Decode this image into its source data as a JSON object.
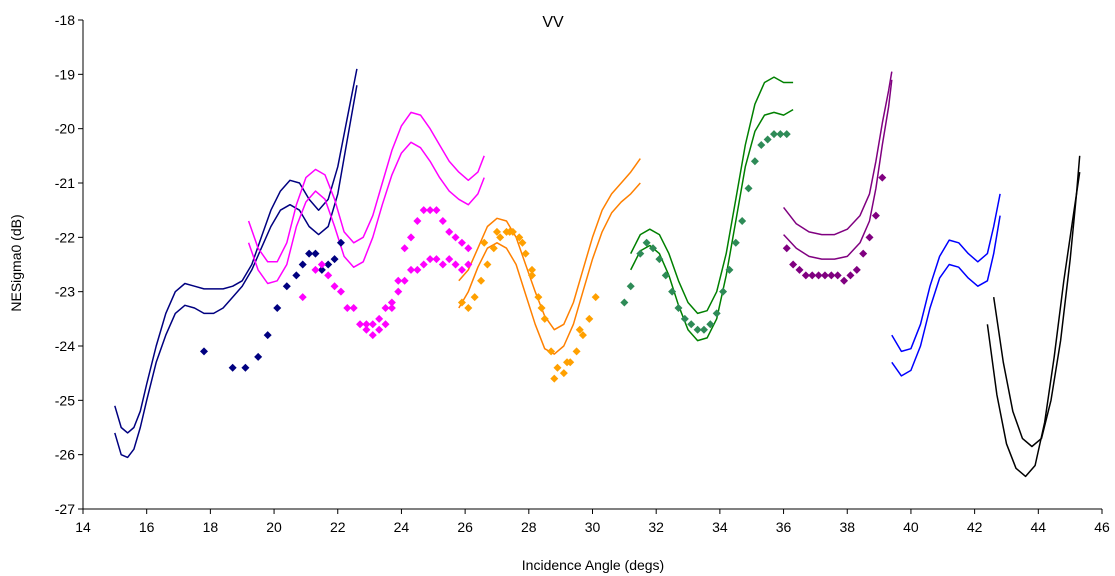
{
  "chart_data": {
    "type": "scatter",
    "title": "VV",
    "xlabel": "Incidence Angle (degs)",
    "ylabel": "NESigma0 (dB)",
    "xlim": [
      14,
      46
    ],
    "ylim": [
      -27,
      -18
    ],
    "xticks": [
      14,
      16,
      18,
      20,
      22,
      24,
      26,
      28,
      30,
      32,
      34,
      36,
      38,
      40,
      42,
      44,
      46
    ],
    "yticks": [
      -18,
      -19,
      -20,
      -21,
      -22,
      -23,
      -24,
      -25,
      -26,
      -27
    ],
    "grid": false,
    "legend": "none",
    "series": [
      {
        "color": "#000080",
        "kind": "line",
        "x": [
          15.0,
          15.2,
          15.4,
          15.6,
          15.8,
          16.0,
          16.3,
          16.6,
          16.9,
          17.2,
          17.5,
          17.8,
          18.1,
          18.4,
          18.7,
          19.0,
          19.3,
          19.6,
          19.9,
          20.2,
          20.5,
          20.8,
          21.1,
          21.4,
          21.7,
          22.0,
          22.3,
          22.6
        ],
        "y": [
          -25.1,
          -25.5,
          -25.6,
          -25.5,
          -25.2,
          -24.7,
          -24.0,
          -23.4,
          -23.0,
          -22.85,
          -22.9,
          -22.95,
          -22.95,
          -22.95,
          -22.9,
          -22.8,
          -22.5,
          -22.0,
          -21.5,
          -21.15,
          -20.95,
          -21.0,
          -21.3,
          -21.5,
          -21.3,
          -20.7,
          -19.8,
          -18.9
        ]
      },
      {
        "color": "#000080",
        "kind": "line",
        "x": [
          15.0,
          15.2,
          15.4,
          15.6,
          15.8,
          16.0,
          16.3,
          16.6,
          16.9,
          17.2,
          17.5,
          17.8,
          18.1,
          18.4,
          18.7,
          19.0,
          19.3,
          19.6,
          19.9,
          20.2,
          20.5,
          20.8,
          21.1,
          21.4,
          21.7,
          22.0,
          22.3,
          22.6
        ],
        "y": [
          -25.6,
          -26.0,
          -26.05,
          -25.9,
          -25.5,
          -25.0,
          -24.3,
          -23.8,
          -23.4,
          -23.25,
          -23.3,
          -23.4,
          -23.4,
          -23.3,
          -23.1,
          -22.9,
          -22.6,
          -22.2,
          -21.8,
          -21.5,
          -21.4,
          -21.5,
          -21.8,
          -21.95,
          -21.8,
          -21.2,
          -20.2,
          -19.2
        ]
      },
      {
        "color": "#FF00FF",
        "kind": "line",
        "x": [
          19.2,
          19.5,
          19.8,
          20.1,
          20.4,
          20.7,
          21.0,
          21.3,
          21.6,
          21.9,
          22.2,
          22.5,
          22.8,
          23.1,
          23.4,
          23.7,
          24.0,
          24.3,
          24.6,
          24.9,
          25.2,
          25.5,
          25.8,
          26.1,
          26.4,
          26.6
        ],
        "y": [
          -21.7,
          -22.2,
          -22.45,
          -22.45,
          -22.1,
          -21.4,
          -20.9,
          -20.75,
          -20.85,
          -21.3,
          -21.9,
          -22.1,
          -22.0,
          -21.6,
          -21.0,
          -20.4,
          -19.95,
          -19.7,
          -19.75,
          -20.0,
          -20.3,
          -20.6,
          -20.8,
          -20.95,
          -20.8,
          -20.5
        ]
      },
      {
        "color": "#FF00FF",
        "kind": "line",
        "x": [
          19.2,
          19.5,
          19.8,
          20.1,
          20.4,
          20.7,
          21.0,
          21.3,
          21.6,
          21.9,
          22.2,
          22.5,
          22.8,
          23.1,
          23.4,
          23.7,
          24.0,
          24.3,
          24.6,
          24.9,
          25.2,
          25.5,
          25.8,
          26.1,
          26.4,
          26.6
        ],
        "y": [
          -22.1,
          -22.6,
          -22.85,
          -22.8,
          -22.5,
          -21.8,
          -21.35,
          -21.15,
          -21.3,
          -21.8,
          -22.35,
          -22.55,
          -22.45,
          -22.0,
          -21.4,
          -20.85,
          -20.45,
          -20.25,
          -20.35,
          -20.6,
          -20.9,
          -21.15,
          -21.3,
          -21.4,
          -21.2,
          -20.9
        ]
      },
      {
        "color": "#FF8000",
        "kind": "line",
        "x": [
          25.8,
          26.1,
          26.4,
          26.7,
          27.0,
          27.3,
          27.6,
          27.9,
          28.2,
          28.5,
          28.8,
          29.1,
          29.4,
          29.7,
          30.0,
          30.3,
          30.6,
          30.9,
          31.2,
          31.5
        ],
        "y": [
          -22.8,
          -22.6,
          -22.2,
          -21.8,
          -21.65,
          -21.7,
          -22.0,
          -22.5,
          -23.0,
          -23.45,
          -23.7,
          -23.6,
          -23.2,
          -22.6,
          -22.0,
          -21.5,
          -21.2,
          -21.0,
          -20.8,
          -20.55
        ]
      },
      {
        "color": "#FF8000",
        "kind": "line",
        "x": [
          25.8,
          26.1,
          26.4,
          26.7,
          27.0,
          27.3,
          27.6,
          27.9,
          28.2,
          28.5,
          28.8,
          29.1,
          29.4,
          29.7,
          30.0,
          30.3,
          30.6,
          30.9,
          31.2,
          31.5
        ],
        "y": [
          -23.3,
          -23.0,
          -22.55,
          -22.2,
          -22.1,
          -22.2,
          -22.5,
          -23.05,
          -23.6,
          -24.05,
          -24.15,
          -24.0,
          -23.6,
          -23.0,
          -22.4,
          -21.9,
          -21.55,
          -21.35,
          -21.2,
          -21.0
        ]
      },
      {
        "color": "#008000",
        "kind": "line",
        "x": [
          31.2,
          31.5,
          31.8,
          32.1,
          32.4,
          32.7,
          33.0,
          33.3,
          33.6,
          33.9,
          34.2,
          34.5,
          34.8,
          35.1,
          35.4,
          35.7,
          36.0,
          36.3
        ],
        "y": [
          -22.3,
          -21.95,
          -21.85,
          -21.95,
          -22.3,
          -22.8,
          -23.2,
          -23.4,
          -23.35,
          -23.0,
          -22.3,
          -21.3,
          -20.3,
          -19.55,
          -19.15,
          -19.05,
          -19.15,
          -19.15
        ]
      },
      {
        "color": "#008000",
        "kind": "line",
        "x": [
          31.2,
          31.5,
          31.8,
          32.1,
          32.4,
          32.7,
          33.0,
          33.3,
          33.6,
          33.9,
          34.2,
          34.5,
          34.8,
          35.1,
          35.4,
          35.7,
          36.0,
          36.3
        ],
        "y": [
          -22.6,
          -22.25,
          -22.15,
          -22.3,
          -22.7,
          -23.25,
          -23.7,
          -23.9,
          -23.85,
          -23.5,
          -22.7,
          -21.7,
          -20.7,
          -20.05,
          -19.75,
          -19.7,
          -19.75,
          -19.65
        ]
      },
      {
        "color": "#800080",
        "kind": "line",
        "x": [
          36.0,
          36.4,
          36.8,
          37.2,
          37.6,
          38.0,
          38.4,
          38.7,
          38.9,
          39.1,
          39.3,
          39.4
        ],
        "y": [
          -21.45,
          -21.75,
          -21.9,
          -21.95,
          -21.95,
          -21.85,
          -21.6,
          -21.2,
          -20.6,
          -19.9,
          -19.3,
          -18.95
        ]
      },
      {
        "color": "#800080",
        "kind": "line",
        "x": [
          36.0,
          36.4,
          36.8,
          37.2,
          37.6,
          38.0,
          38.4,
          38.7,
          38.9,
          39.1,
          39.3,
          39.4
        ],
        "y": [
          -21.95,
          -22.2,
          -22.35,
          -22.4,
          -22.4,
          -22.35,
          -22.1,
          -21.7,
          -21.1,
          -20.3,
          -19.6,
          -19.1
        ]
      },
      {
        "color": "#0000FF",
        "kind": "line",
        "x": [
          39.4,
          39.7,
          40.0,
          40.3,
          40.6,
          40.9,
          41.2,
          41.5,
          41.8,
          42.1,
          42.4,
          42.6,
          42.8
        ],
        "y": [
          -23.8,
          -24.1,
          -24.05,
          -23.6,
          -22.9,
          -22.35,
          -22.05,
          -22.1,
          -22.3,
          -22.45,
          -22.3,
          -21.8,
          -21.2
        ]
      },
      {
        "color": "#0000FF",
        "kind": "line",
        "x": [
          39.4,
          39.7,
          40.0,
          40.3,
          40.6,
          40.9,
          41.2,
          41.5,
          41.8,
          42.1,
          42.4,
          42.6,
          42.8
        ],
        "y": [
          -24.3,
          -24.55,
          -24.45,
          -24.0,
          -23.3,
          -22.75,
          -22.5,
          -22.55,
          -22.75,
          -22.9,
          -22.8,
          -22.3,
          -21.6
        ]
      },
      {
        "color": "#000000",
        "kind": "line",
        "x": [
          42.6,
          42.9,
          43.2,
          43.5,
          43.8,
          44.1,
          44.4,
          44.7,
          45.0,
          45.2,
          45.3
        ],
        "y": [
          -23.1,
          -24.3,
          -25.2,
          -25.7,
          -25.85,
          -25.7,
          -25.0,
          -23.9,
          -22.4,
          -21.2,
          -20.5
        ]
      },
      {
        "color": "#000000",
        "kind": "line",
        "x": [
          42.4,
          42.7,
          43.0,
          43.3,
          43.6,
          43.9,
          44.2,
          44.5,
          44.8,
          45.1,
          45.3
        ],
        "y": [
          -23.6,
          -24.9,
          -25.8,
          -26.25,
          -26.4,
          -26.2,
          -25.4,
          -24.2,
          -22.8,
          -21.6,
          -20.8
        ]
      },
      {
        "color": "#000080",
        "kind": "marker",
        "x": [
          17.8,
          18.7,
          19.1,
          19.5,
          19.8,
          20.1,
          20.4,
          20.7,
          20.9,
          21.1,
          21.3,
          21.5,
          21.7,
          21.9,
          22.1
        ],
        "y": [
          -24.1,
          -24.4,
          -24.4,
          -24.2,
          -23.8,
          -23.3,
          -22.9,
          -22.7,
          -22.5,
          -22.3,
          -22.3,
          -22.6,
          -22.5,
          -22.4,
          -22.1
        ]
      },
      {
        "color": "#FF00FF",
        "kind": "marker",
        "x": [
          20.9,
          21.3,
          21.5,
          21.7,
          21.9,
          22.1,
          22.3,
          22.5,
          22.7,
          22.9,
          23.1,
          23.3,
          23.5,
          23.7,
          23.9,
          24.1,
          24.3,
          24.5,
          24.7,
          24.9,
          25.1,
          25.3,
          25.5,
          25.7,
          25.9,
          26.1
        ],
        "y": [
          -23.1,
          -22.6,
          -22.5,
          -22.7,
          -22.9,
          -23.0,
          -23.3,
          -23.3,
          -23.6,
          -23.6,
          -23.6,
          -23.5,
          -23.3,
          -23.2,
          -22.8,
          -22.2,
          -22.0,
          -21.7,
          -21.5,
          -21.5,
          -21.5,
          -21.7,
          -21.9,
          -22.0,
          -22.1,
          -22.2
        ]
      },
      {
        "color": "#FF00FF",
        "kind": "marker",
        "x": [
          22.9,
          23.1,
          23.3,
          23.5,
          23.7,
          23.9,
          24.1,
          24.3,
          24.5,
          24.7,
          24.9,
          25.1,
          25.3,
          25.5,
          25.7,
          25.9,
          26.1
        ],
        "y": [
          -23.7,
          -23.8,
          -23.7,
          -23.6,
          -23.3,
          -23.0,
          -22.8,
          -22.6,
          -22.6,
          -22.5,
          -22.4,
          -22.4,
          -22.5,
          -22.4,
          -22.5,
          -22.6,
          -22.5
        ]
      },
      {
        "color": "#FFA000",
        "kind": "marker",
        "x": [
          25.9,
          26.1,
          26.3,
          26.5,
          26.7,
          26.9,
          27.1,
          27.3,
          27.5,
          27.7,
          27.9,
          28.1,
          28.3,
          28.5,
          28.7,
          28.9,
          29.1,
          29.3,
          29.5,
          29.7,
          29.9,
          30.1
        ],
        "y": [
          -23.2,
          -23.3,
          -23.1,
          -22.8,
          -22.5,
          -22.2,
          -22.0,
          -21.9,
          -21.9,
          -22.0,
          -22.3,
          -22.7,
          -23.1,
          -23.5,
          -24.1,
          -24.4,
          -24.5,
          -24.3,
          -24.1,
          -23.8,
          -23.5,
          -23.1
        ]
      },
      {
        "color": "#FFA000",
        "kind": "marker",
        "x": [
          26.6,
          27.0,
          27.4,
          27.8,
          28.1,
          28.4,
          28.8,
          29.2,
          29.6
        ],
        "y": [
          -22.1,
          -21.9,
          -21.9,
          -22.1,
          -22.6,
          -23.3,
          -24.6,
          -24.3,
          -23.7
        ]
      },
      {
        "color": "#2E8B57",
        "kind": "marker",
        "x": [
          31.0,
          31.2,
          31.5,
          31.7,
          31.9,
          32.1,
          32.3,
          32.5,
          32.7,
          32.9,
          33.1,
          33.3,
          33.5,
          33.7,
          33.9,
          34.1,
          34.3,
          34.5,
          34.7,
          34.9,
          35.1,
          35.3,
          35.5,
          35.7,
          35.9,
          36.1
        ],
        "y": [
          -23.2,
          -22.9,
          -22.3,
          -22.1,
          -22.2,
          -22.4,
          -22.7,
          -23.0,
          -23.3,
          -23.5,
          -23.6,
          -23.7,
          -23.7,
          -23.6,
          -23.4,
          -23.0,
          -22.6,
          -22.1,
          -21.7,
          -21.1,
          -20.6,
          -20.3,
          -20.2,
          -20.1,
          -20.1,
          -20.1
        ]
      },
      {
        "color": "#800080",
        "kind": "marker",
        "x": [
          36.1,
          36.3,
          36.5,
          36.7,
          36.9,
          37.1,
          37.3,
          37.5,
          37.7,
          37.9,
          38.1,
          38.3,
          38.5,
          38.7,
          38.9,
          39.1
        ],
        "y": [
          -22.2,
          -22.5,
          -22.6,
          -22.7,
          -22.7,
          -22.7,
          -22.7,
          -22.7,
          -22.7,
          -22.8,
          -22.7,
          -22.6,
          -22.3,
          -22.0,
          -21.6,
          -20.9
        ]
      }
    ]
  }
}
